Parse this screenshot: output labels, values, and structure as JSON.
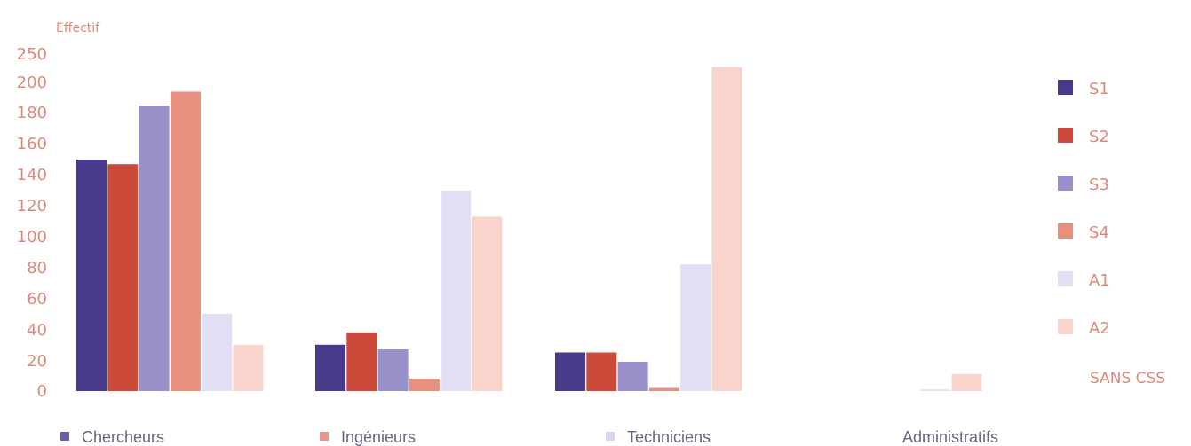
{
  "chart_data": {
    "type": "bar",
    "ylabel": "Effectif",
    "ylim": [
      0,
      250
    ],
    "yticks": [
      0,
      20,
      40,
      60,
      80,
      100,
      120,
      140,
      160,
      180,
      200,
      250
    ],
    "categories": [
      "Chercheurs",
      "Ingénieurs",
      "Techniciens",
      "Administratifs"
    ],
    "category_marker_colors": [
      "#6a5fa8",
      "#e89888",
      "#d8d4ec",
      null
    ],
    "series": [
      {
        "name": "S1",
        "color": "#4a3a8c",
        "values": [
          150,
          30,
          25,
          0
        ]
      },
      {
        "name": "S2",
        "color": "#cc4a3a",
        "values": [
          147,
          38,
          25,
          0
        ]
      },
      {
        "name": "S3",
        "color": "#9890c8",
        "values": [
          185,
          27,
          19,
          0
        ]
      },
      {
        "name": "S4",
        "color": "#e8907e",
        "values": [
          194,
          8,
          2,
          0
        ]
      },
      {
        "name": "A1",
        "color": "#e2def4",
        "values": [
          50,
          130,
          82,
          1
        ]
      },
      {
        "name": "A2",
        "color": "#f9d4cc",
        "values": [
          30,
          113,
          210,
          11
        ]
      }
    ],
    "note": "SANS CSS",
    "grid": false,
    "legend_position": "right"
  }
}
